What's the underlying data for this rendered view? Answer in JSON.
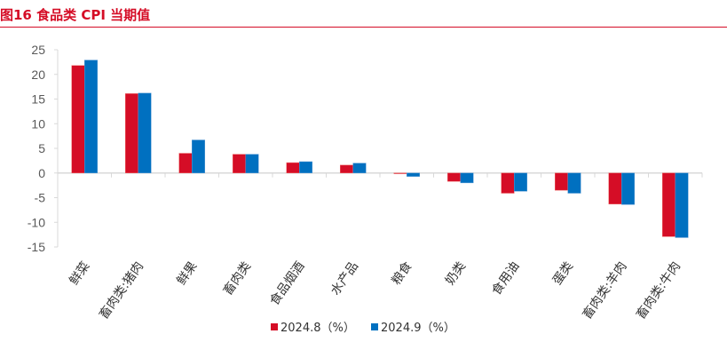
{
  "title": "图16  食品类 CPI 当期值",
  "chart_data": {
    "type": "bar",
    "title": "图16  食品类 CPI 当期值",
    "categories": [
      "鲜菜",
      "畜肉类:猪肉",
      "鲜果",
      "畜肉类",
      "食品烟酒",
      "水产品",
      "粮食",
      "奶类",
      "食用油",
      "蛋类",
      "畜肉类:羊肉",
      "畜肉类:牛肉"
    ],
    "series": [
      {
        "name": "2024.8（%）",
        "color": "#d50d26",
        "values": [
          21.8,
          16.1,
          4.0,
          3.8,
          2.1,
          1.6,
          -0.1,
          -1.7,
          -4.1,
          -3.5,
          -6.3,
          -12.9
        ]
      },
      {
        "name": "2024.9（%）",
        "color": "#0070c0",
        "values": [
          22.9,
          16.2,
          6.7,
          3.8,
          2.3,
          2.0,
          -0.7,
          -2.0,
          -3.7,
          -4.1,
          -6.4,
          -13.1
        ]
      }
    ],
    "ylim": [
      -15,
      25
    ],
    "yticks": [
      "25",
      "20",
      "15",
      "10",
      "5",
      "0",
      "-5",
      "-10",
      "-15"
    ],
    "xlabel": "",
    "ylabel": "",
    "grid": false,
    "legend": "bottom"
  }
}
